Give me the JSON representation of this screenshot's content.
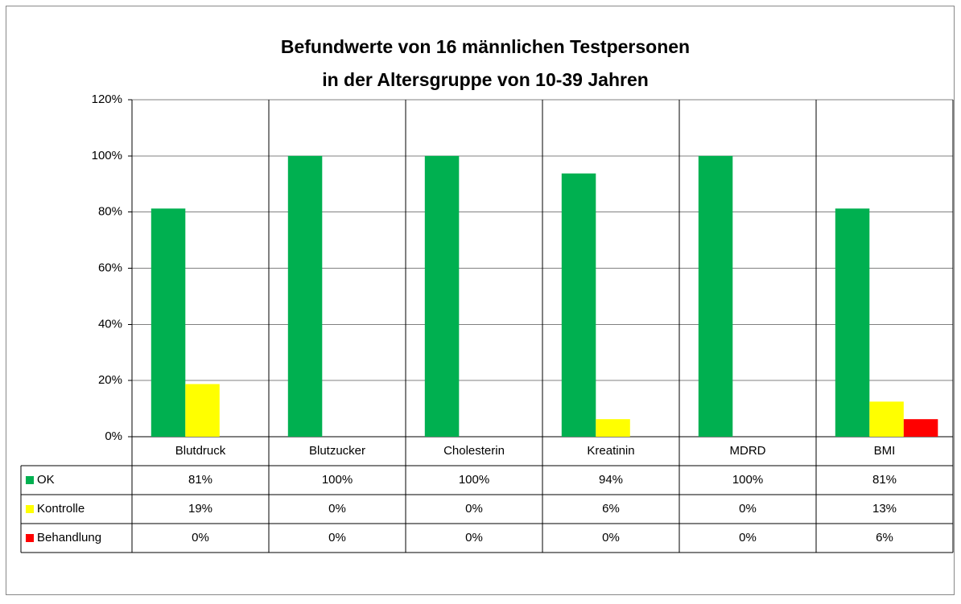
{
  "chart_data": {
    "type": "bar",
    "title": [
      "Befundwerte von 16 männlichen Testpersonen",
      "in der Altersgruppe von 10-39 Jahren"
    ],
    "categories": [
      "Blutdruck",
      "Blutzucker",
      "Cholesterin",
      "Kreatinin",
      "MDRD",
      "BMI"
    ],
    "series": [
      {
        "name": "OK",
        "color": "#00b050",
        "values": [
          81.25,
          100,
          100,
          93.75,
          100,
          81.25
        ],
        "value_labels": [
          "81%",
          "100%",
          "100%",
          "94%",
          "100%",
          "81%"
        ]
      },
      {
        "name": "Kontrolle",
        "color": "#ffff00",
        "values": [
          18.75,
          0,
          0,
          6.25,
          0,
          12.5
        ],
        "value_labels": [
          "19%",
          "0%",
          "0%",
          "6%",
          "0%",
          "13%"
        ]
      },
      {
        "name": "Behandlung",
        "color": "#ff0000",
        "values": [
          0,
          0,
          0,
          0,
          0,
          6.25
        ],
        "value_labels": [
          "0%",
          "0%",
          "0%",
          "0%",
          "0%",
          "6%"
        ]
      }
    ],
    "ylim": [
      0,
      120
    ],
    "yticks": [
      {
        "value": 0,
        "label": "0%"
      },
      {
        "value": 20,
        "label": "20%"
      },
      {
        "value": 40,
        "label": "40%"
      },
      {
        "value": 60,
        "label": "60%"
      },
      {
        "value": 80,
        "label": "80%"
      },
      {
        "value": 100,
        "label": "100%"
      },
      {
        "value": 120,
        "label": "120%"
      }
    ],
    "grid": true
  }
}
